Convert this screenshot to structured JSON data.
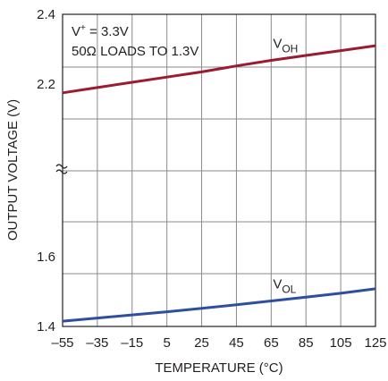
{
  "chart_data": {
    "type": "line",
    "title": "",
    "xlabel": "TEMPERATURE (°C)",
    "ylabel": "OUTPUT VOLTAGE (V)",
    "xlim": [
      -55,
      125
    ],
    "x_ticks": [
      -55,
      -35,
      -15,
      5,
      25,
      45,
      65,
      85,
      105,
      125
    ],
    "x_tick_labels": [
      "–55",
      "–35",
      "–15",
      "5",
      "25",
      "45",
      "65",
      "85",
      "105",
      "125"
    ],
    "y_axis_break": true,
    "y_segments": [
      {
        "range": [
          2.1,
          2.4
        ],
        "ticks": [
          2.2,
          2.4
        ],
        "tick_labels": [
          "2.2",
          "2.4"
        ]
      },
      {
        "range": [
          1.4,
          1.7
        ],
        "ticks": [
          1.4,
          1.6
        ],
        "tick_labels": [
          "1.4",
          "1.6"
        ]
      }
    ],
    "grid": true,
    "annotations": {
      "line1_prefix": "V",
      "line1_sup": "+",
      "line1_suffix": " = 3.3V",
      "line2": "50Ω LOADS TO 1.3V"
    },
    "series": [
      {
        "name": "V",
        "sub": "OH",
        "color": "#9b1b30",
        "segment": 0,
        "x": [
          -55,
          -35,
          -15,
          5,
          25,
          45,
          65,
          85,
          105,
          125
        ],
        "y": [
          2.175,
          2.19,
          2.205,
          2.22,
          2.235,
          2.252,
          2.268,
          2.282,
          2.296,
          2.31
        ]
      },
      {
        "name": "V",
        "sub": "OL",
        "color": "#2e4fa0",
        "segment": 1,
        "x": [
          -55,
          -35,
          -15,
          5,
          25,
          45,
          65,
          85,
          105,
          125
        ],
        "y": [
          1.415,
          1.424,
          1.433,
          1.442,
          1.452,
          1.462,
          1.473,
          1.484,
          1.495,
          1.508
        ]
      }
    ]
  }
}
